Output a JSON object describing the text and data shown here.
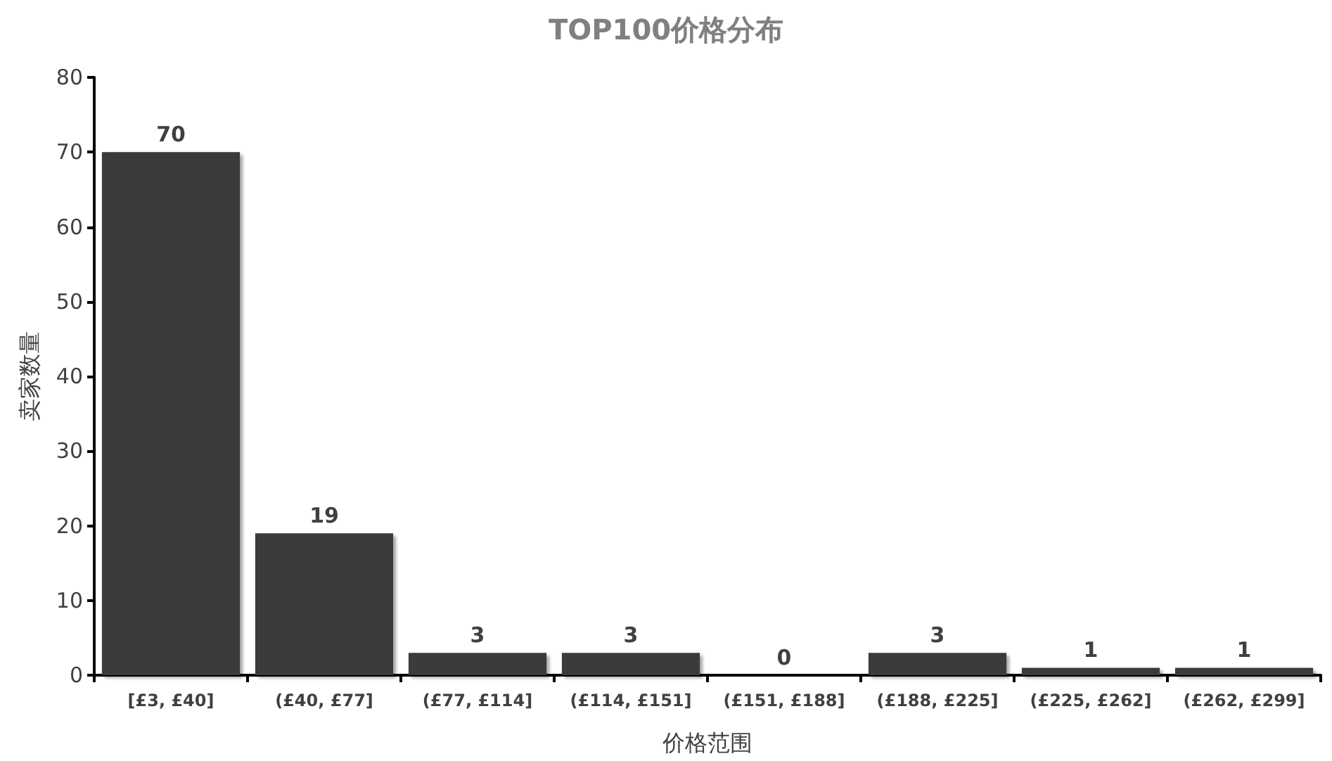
{
  "chart_data": {
    "type": "bar",
    "title": "TOP100价格分布",
    "xlabel": "价格范围",
    "ylabel": "卖家数量",
    "categories": [
      "[£3, £40]",
      "(£40, £77]",
      "(£77, £114]",
      "(£114, £151]",
      "(£151, £188]",
      "(£188, £225]",
      "(£225, £262]",
      "(£262, £299]"
    ],
    "values": [
      70,
      19,
      3,
      3,
      0,
      3,
      1,
      1
    ],
    "color": "#3a3a3a",
    "ylim": [
      0,
      80
    ],
    "yticks": [
      0,
      10,
      20,
      30,
      40,
      50,
      60,
      70,
      80
    ],
    "data_labels": true,
    "grid": false
  }
}
